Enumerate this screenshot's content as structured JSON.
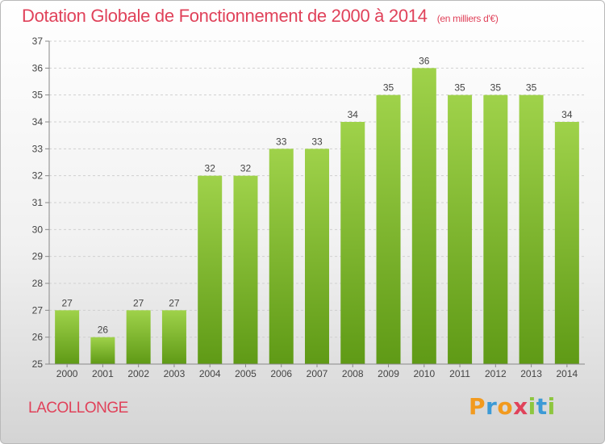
{
  "header": {
    "title": "Dotation Globale de Fonctionnement de 2000 à 2014",
    "subtitle": "(en milliers d'€)"
  },
  "footer": {
    "commune": "LACOLLONGE",
    "logo_text": "Proxiti"
  },
  "colors": {
    "title": "#e0425a",
    "bar_light": "#9fd24a",
    "bar_dark": "#5f9a16",
    "logo": [
      "#f29a1e",
      "#3c9ad6",
      "#f29a1e",
      "#e0425a",
      "#8dc63f",
      "#3c9ad6",
      "#8dc63f"
    ]
  },
  "chart_data": {
    "type": "bar",
    "categories": [
      "2000",
      "2001",
      "2002",
      "2003",
      "2004",
      "2005",
      "2006",
      "2007",
      "2008",
      "2009",
      "2010",
      "2011",
      "2012",
      "2013",
      "2014"
    ],
    "values": [
      27,
      26,
      27,
      27,
      32,
      32,
      33,
      33,
      34,
      35,
      36,
      35,
      35,
      35,
      34
    ],
    "yticks": [
      25,
      26,
      27,
      28,
      29,
      30,
      31,
      32,
      33,
      34,
      35,
      36,
      37
    ],
    "ylim": [
      25,
      37
    ],
    "grid": "horizontal dashed",
    "legend": "none"
  }
}
